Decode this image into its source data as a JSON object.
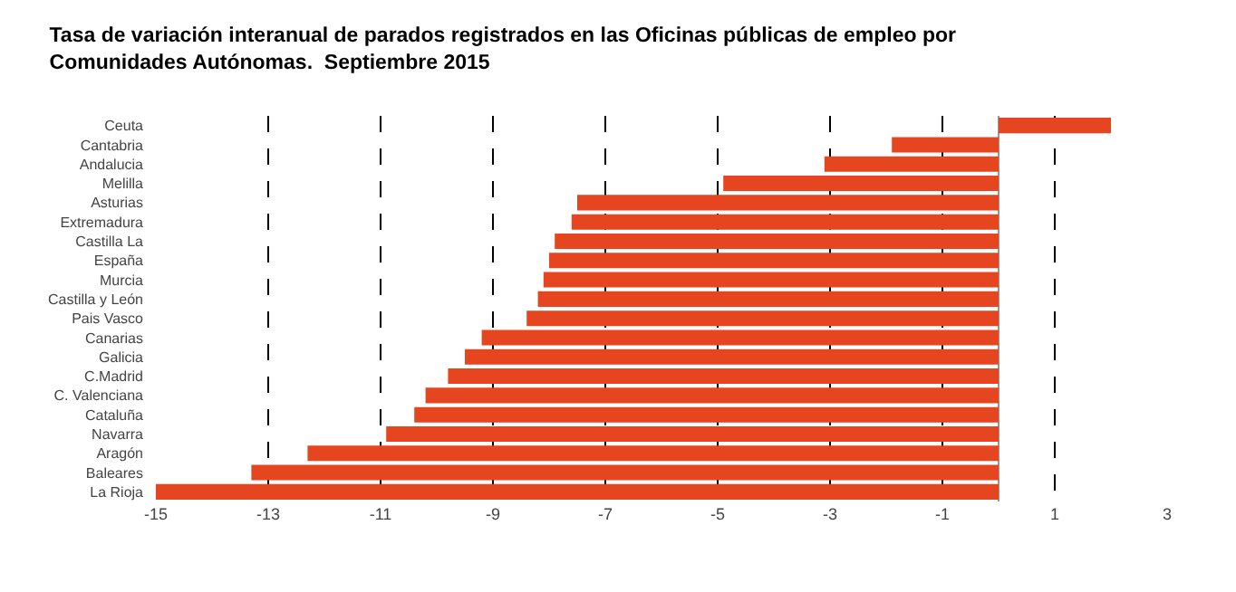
{
  "chart_data": {
    "type": "bar",
    "orientation": "horizontal",
    "title": "Tasa de variación interanual de parados registrados en las Oficinas públicas de empleo por\nComunidades Autónomas.  Septiembre 2015",
    "categories": [
      "Ceuta",
      "Cantabria",
      "Andalucia",
      "Melilla",
      "Asturias",
      "Extremadura",
      "Castilla La",
      "España",
      "Murcia",
      "Castilla y León",
      "Pais Vasco",
      "Canarias",
      "Galicia",
      "C.Madrid",
      "C. Valenciana",
      "Cataluña",
      "Navarra",
      "Aragón",
      "Baleares",
      "La Rioja"
    ],
    "values": [
      2.0,
      -1.9,
      -3.1,
      -4.9,
      -7.5,
      -7.6,
      -7.9,
      -8.0,
      -8.1,
      -8.2,
      -8.4,
      -9.2,
      -9.5,
      -9.8,
      -10.2,
      -10.4,
      -10.9,
      -12.3,
      -13.3,
      -15.0
    ],
    "color": "#e5461f",
    "xlim": [
      -15,
      3
    ],
    "xticks": [
      -15,
      -13,
      -11,
      -9,
      -7,
      -5,
      -3,
      -1,
      1,
      3
    ],
    "grid": "x"
  }
}
